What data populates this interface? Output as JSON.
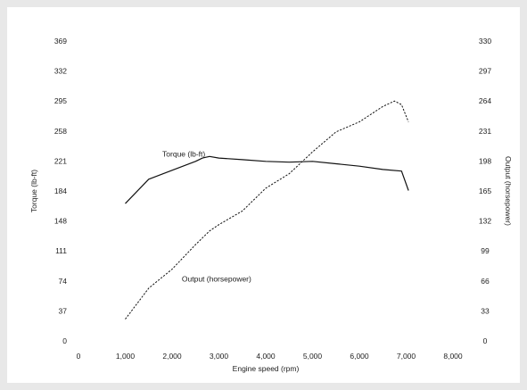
{
  "chart_data": {
    "type": "line",
    "title": "",
    "xlabel": "Engine speed (rpm)",
    "ylabel_left": "Torque (lb-ft)",
    "ylabel_right": "Output (horsepower)",
    "xlim": [
      0,
      8000
    ],
    "ylim_left": [
      0,
      369
    ],
    "ylim_right": [
      0,
      330
    ],
    "x_ticks": [
      "0",
      "1,000",
      "2,000",
      "3,000",
      "4,000",
      "5,000",
      "6,000",
      "7,000",
      "8,000"
    ],
    "y_ticks_left": [
      "0",
      "37",
      "74",
      "111",
      "148",
      "184",
      "221",
      "258",
      "295",
      "332",
      "369"
    ],
    "y_ticks_right": [
      "0",
      "33",
      "66",
      "99",
      "132",
      "165",
      "198",
      "231",
      "264",
      "297",
      "330"
    ],
    "grid": false,
    "series": [
      {
        "name": "Torque (lb-ft)",
        "axis": "left",
        "style": "solid",
        "x": [
          1000,
          1500,
          2000,
          2500,
          2650,
          2800,
          3000,
          3500,
          4000,
          4500,
          5000,
          5500,
          6000,
          6500,
          6900,
          7050
        ],
        "y": [
          169,
          199,
          210,
          221,
          225,
          227,
          225,
          223,
          221,
          220,
          221,
          218,
          215,
          211,
          209,
          185
        ]
      },
      {
        "name": "Output (horsepower)",
        "axis": "right",
        "style": "dashed",
        "x": [
          1000,
          1500,
          2000,
          2500,
          2800,
          3000,
          3500,
          4000,
          4500,
          5000,
          5500,
          6000,
          6500,
          6750,
          6900,
          7050
        ],
        "y": [
          24,
          58,
          79,
          106,
          121,
          128,
          143,
          168,
          184,
          208,
          230,
          241,
          258,
          264,
          260,
          241
        ]
      }
    ],
    "annotations": [
      {
        "text": "Torque (lb-ft)",
        "x": 2250,
        "y_left": 227
      },
      {
        "text": "Output (horsepower)",
        "x": 2950,
        "y_left": 73
      }
    ]
  }
}
